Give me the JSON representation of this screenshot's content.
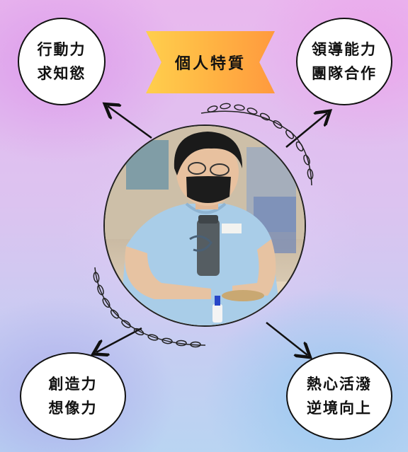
{
  "banner": {
    "title": "個人特質"
  },
  "traits": {
    "top_left": {
      "line1": "行動力",
      "line2": "求知慾"
    },
    "top_right": {
      "line1": "領導能力",
      "line2": "團隊合作"
    },
    "bottom_left": {
      "line1": "創造力",
      "line2": "想像力"
    },
    "bottom_right": {
      "line1": "熱心活潑",
      "line2": "逆境向上"
    }
  },
  "colors": {
    "banner_start": "#ffcf4d",
    "banner_end": "#ff9a3e",
    "outline": "#111111"
  }
}
